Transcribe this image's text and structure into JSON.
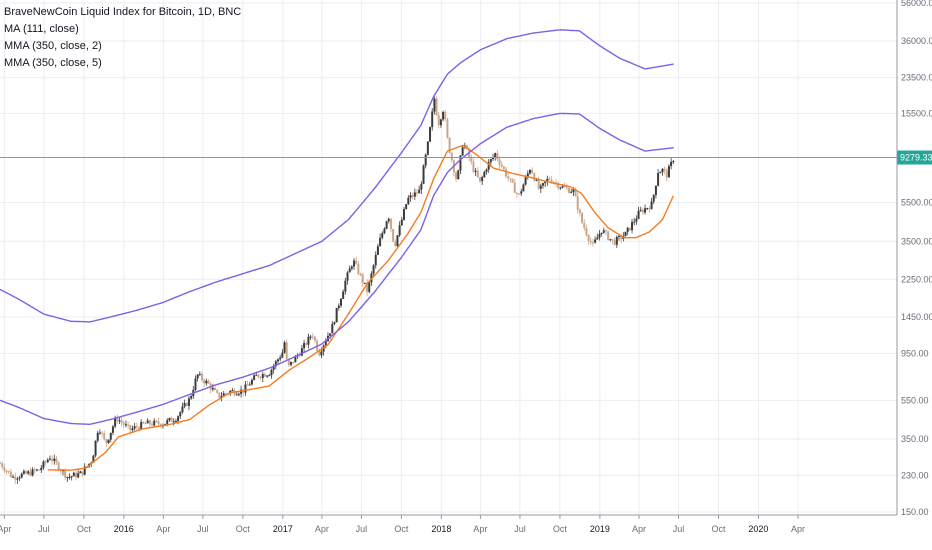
{
  "legend": {
    "title": "BraveNewCoin Liquid Index for Bitcoin, 1D, BNC",
    "indicators": [
      "MA (111, close)",
      "MMA (350, close, 2)",
      "MMA (350, close, 5)"
    ]
  },
  "colors": {
    "ma111": "#f57c20",
    "mma": "#7b61e8",
    "last_price_line": "#6fa58b",
    "last_price_tag": "#26a69a",
    "candle_up": "#3b3b3b",
    "candle_down": "#c9a58a",
    "grid": "#eceef2",
    "axis_line": "#9598a1"
  },
  "last_price": {
    "value": 9279.33,
    "label": "9279.33"
  },
  "chart_data": {
    "type": "line",
    "title": "BraveNewCoin Liquid Index for Bitcoin, 1D, BNC",
    "y_scale": "log",
    "ylim": [
      150,
      56000
    ],
    "xlim": [
      "2015-03-22",
      "2020-11-15"
    ],
    "y_ticks": [
      {
        "value": 56000,
        "label": "56000.00"
      },
      {
        "value": 36000,
        "label": "36000.00"
      },
      {
        "value": 23500,
        "label": "23500.00"
      },
      {
        "value": 15500,
        "label": "15500.00"
      },
      {
        "value": 9279.33,
        "label": "9279.33"
      },
      {
        "value": 5500,
        "label": "5500.00"
      },
      {
        "value": 3500,
        "label": "3500.00"
      },
      {
        "value": 2250,
        "label": "2250.00"
      },
      {
        "value": 1450,
        "label": "1450.00"
      },
      {
        "value": 950,
        "label": "950.00"
      },
      {
        "value": 550,
        "label": "550.00"
      },
      {
        "value": 350,
        "label": "350.00"
      },
      {
        "value": 230,
        "label": "230.00"
      },
      {
        "value": 150,
        "label": "150.00"
      }
    ],
    "x_ticks": [
      {
        "date": "2015-04-01",
        "label": "Apr",
        "year": false
      },
      {
        "date": "2015-07-01",
        "label": "Jul",
        "year": false
      },
      {
        "date": "2015-10-01",
        "label": "Oct",
        "year": false
      },
      {
        "date": "2016-01-01",
        "label": "2016",
        "year": true
      },
      {
        "date": "2016-04-01",
        "label": "Apr",
        "year": false
      },
      {
        "date": "2016-07-01",
        "label": "Jul",
        "year": false
      },
      {
        "date": "2016-10-01",
        "label": "Oct",
        "year": false
      },
      {
        "date": "2017-01-01",
        "label": "2017",
        "year": true
      },
      {
        "date": "2017-04-01",
        "label": "Apr",
        "year": false
      },
      {
        "date": "2017-07-01",
        "label": "Jul",
        "year": false
      },
      {
        "date": "2017-10-01",
        "label": "Oct",
        "year": false
      },
      {
        "date": "2018-01-01",
        "label": "2018",
        "year": true
      },
      {
        "date": "2018-04-01",
        "label": "Apr",
        "year": false
      },
      {
        "date": "2018-07-01",
        "label": "Jul",
        "year": false
      },
      {
        "date": "2018-10-01",
        "label": "Oct",
        "year": false
      },
      {
        "date": "2019-01-01",
        "label": "2019",
        "year": true
      },
      {
        "date": "2019-04-01",
        "label": "Apr",
        "year": false
      },
      {
        "date": "2019-07-01",
        "label": "Jul",
        "year": false
      },
      {
        "date": "2019-10-01",
        "label": "Oct",
        "year": false
      },
      {
        "date": "2020-01-01",
        "label": "2020",
        "year": true
      },
      {
        "date": "2020-04-01",
        "label": "Apr",
        "year": false
      }
    ],
    "series": [
      {
        "name": "BraveNewCoin Liquid Index for Bitcoin, 1D, BNC",
        "kind": "candles",
        "points": [
          [
            "2015-03-22",
            265
          ],
          [
            "2015-04-20",
            225
          ],
          [
            "2015-05-25",
            235
          ],
          [
            "2015-06-20",
            245
          ],
          [
            "2015-07-15",
            285
          ],
          [
            "2015-08-25",
            225
          ],
          [
            "2015-09-25",
            235
          ],
          [
            "2015-10-20",
            275
          ],
          [
            "2015-11-04",
            410
          ],
          [
            "2015-11-20",
            330
          ],
          [
            "2015-12-15",
            450
          ],
          [
            "2016-01-15",
            390
          ],
          [
            "2016-02-20",
            420
          ],
          [
            "2016-04-01",
            420
          ],
          [
            "2016-05-01",
            450
          ],
          [
            "2016-06-01",
            560
          ],
          [
            "2016-06-18",
            740
          ],
          [
            "2016-07-15",
            660
          ],
          [
            "2016-08-05",
            575
          ],
          [
            "2016-09-01",
            610
          ],
          [
            "2016-10-01",
            615
          ],
          [
            "2016-11-01",
            730
          ],
          [
            "2016-12-01",
            760
          ],
          [
            "2016-12-31",
            960
          ],
          [
            "2017-01-05",
            1080
          ],
          [
            "2017-01-12",
            800
          ],
          [
            "2017-02-15",
            1000
          ],
          [
            "2017-03-10",
            1200
          ],
          [
            "2017-03-25",
            950
          ],
          [
            "2017-04-25",
            1300
          ],
          [
            "2017-05-25",
            2200
          ],
          [
            "2017-06-12",
            2800
          ],
          [
            "2017-07-15",
            1950
          ],
          [
            "2017-08-10",
            3400
          ],
          [
            "2017-09-01",
            4800
          ],
          [
            "2017-09-15",
            3300
          ],
          [
            "2017-10-15",
            5700
          ],
          [
            "2017-11-12",
            6300
          ],
          [
            "2017-12-01",
            10800
          ],
          [
            "2017-12-17",
            19100
          ],
          [
            "2017-12-24",
            13500
          ],
          [
            "2018-01-06",
            16500
          ],
          [
            "2018-01-16",
            11000
          ],
          [
            "2018-02-06",
            7000
          ],
          [
            "2018-02-20",
            11200
          ],
          [
            "2018-03-15",
            8200
          ],
          [
            "2018-03-31",
            6900
          ],
          [
            "2018-04-15",
            8300
          ],
          [
            "2018-05-05",
            9700
          ],
          [
            "2018-06-01",
            7500
          ],
          [
            "2018-06-28",
            5900
          ],
          [
            "2018-07-25",
            8300
          ],
          [
            "2018-08-15",
            6300
          ],
          [
            "2018-09-05",
            7300
          ],
          [
            "2018-10-10",
            6500
          ],
          [
            "2018-11-01",
            6300
          ],
          [
            "2018-11-20",
            4400
          ],
          [
            "2018-12-15",
            3300
          ],
          [
            "2019-01-05",
            4000
          ],
          [
            "2019-02-01",
            3450
          ],
          [
            "2019-03-01",
            3800
          ],
          [
            "2019-04-02",
            4900
          ],
          [
            "2019-05-01",
            5400
          ],
          [
            "2019-05-15",
            7900
          ],
          [
            "2019-05-25",
            8000
          ],
          [
            "2019-06-04",
            7600
          ],
          [
            "2019-06-15",
            8700
          ],
          [
            "2019-06-20",
            9279.33
          ]
        ]
      },
      {
        "name": "MA (111, close)",
        "points": [
          [
            "2015-07-10",
            245
          ],
          [
            "2015-09-01",
            244
          ],
          [
            "2015-10-05",
            250
          ],
          [
            "2015-11-20",
            300
          ],
          [
            "2015-12-20",
            360
          ],
          [
            "2016-02-15",
            395
          ],
          [
            "2016-04-15",
            415
          ],
          [
            "2016-06-01",
            440
          ],
          [
            "2016-07-15",
            520
          ],
          [
            "2016-09-01",
            600
          ],
          [
            "2016-10-20",
            625
          ],
          [
            "2016-12-01",
            650
          ],
          [
            "2017-01-15",
            780
          ],
          [
            "2017-03-01",
            900
          ],
          [
            "2017-04-15",
            1050
          ],
          [
            "2017-06-01",
            1500
          ],
          [
            "2017-07-15",
            2150
          ],
          [
            "2017-09-01",
            2800
          ],
          [
            "2017-10-15",
            3800
          ],
          [
            "2017-11-15",
            4900
          ],
          [
            "2017-12-15",
            7300
          ],
          [
            "2018-01-15",
            10000
          ],
          [
            "2018-02-20",
            10700
          ],
          [
            "2018-03-20",
            9700
          ],
          [
            "2018-05-01",
            8200
          ],
          [
            "2018-06-15",
            7700
          ],
          [
            "2018-08-01",
            7300
          ],
          [
            "2018-09-15",
            6900
          ],
          [
            "2018-10-25",
            6600
          ],
          [
            "2018-11-20",
            6100
          ],
          [
            "2018-12-20",
            4900
          ],
          [
            "2019-01-20",
            4100
          ],
          [
            "2019-02-25",
            3650
          ],
          [
            "2019-03-25",
            3650
          ],
          [
            "2019-04-25",
            3900
          ],
          [
            "2019-05-25",
            4500
          ],
          [
            "2019-06-20",
            6000
          ]
        ]
      },
      {
        "name": "MMA (350, close, 2)",
        "points": [
          [
            "2015-03-22",
            550
          ],
          [
            "2015-05-01",
            510
          ],
          [
            "2015-07-01",
            445
          ],
          [
            "2015-09-01",
            420
          ],
          [
            "2015-10-15",
            416
          ],
          [
            "2015-12-01",
            440
          ],
          [
            "2016-02-01",
            480
          ],
          [
            "2016-04-01",
            525
          ],
          [
            "2016-06-01",
            590
          ],
          [
            "2016-08-01",
            660
          ],
          [
            "2016-10-01",
            720
          ],
          [
            "2016-12-01",
            800
          ],
          [
            "2017-02-01",
            920
          ],
          [
            "2017-04-01",
            1060
          ],
          [
            "2017-06-01",
            1370
          ],
          [
            "2017-08-01",
            1950
          ],
          [
            "2017-10-01",
            2900
          ],
          [
            "2017-11-15",
            4000
          ],
          [
            "2017-12-15",
            6000
          ],
          [
            "2018-01-15",
            7800
          ],
          [
            "2018-02-15",
            9100
          ],
          [
            "2018-04-01",
            10900
          ],
          [
            "2018-06-01",
            13200
          ],
          [
            "2018-08-01",
            14600
          ],
          [
            "2018-10-01",
            15500
          ],
          [
            "2018-11-15",
            15400
          ],
          [
            "2019-01-01",
            13000
          ],
          [
            "2019-02-15",
            11400
          ],
          [
            "2019-04-15",
            10000
          ],
          [
            "2019-06-20",
            10400
          ]
        ]
      },
      {
        "name": "MMA (350, close, 5)",
        "points": [
          [
            "2015-03-22",
            2000
          ],
          [
            "2015-05-01",
            1800
          ],
          [
            "2015-07-01",
            1500
          ],
          [
            "2015-09-01",
            1380
          ],
          [
            "2015-10-15",
            1370
          ],
          [
            "2015-12-01",
            1450
          ],
          [
            "2016-02-01",
            1570
          ],
          [
            "2016-04-01",
            1720
          ],
          [
            "2016-06-01",
            1950
          ],
          [
            "2016-08-01",
            2180
          ],
          [
            "2016-10-01",
            2400
          ],
          [
            "2016-12-01",
            2640
          ],
          [
            "2017-02-01",
            3050
          ],
          [
            "2017-04-01",
            3500
          ],
          [
            "2017-06-01",
            4500
          ],
          [
            "2017-08-01",
            6500
          ],
          [
            "2017-10-01",
            9800
          ],
          [
            "2017-11-15",
            13500
          ],
          [
            "2017-12-15",
            19000
          ],
          [
            "2018-01-15",
            24500
          ],
          [
            "2018-02-15",
            28000
          ],
          [
            "2018-04-01",
            32500
          ],
          [
            "2018-06-01",
            37000
          ],
          [
            "2018-08-01",
            39500
          ],
          [
            "2018-10-01",
            41000
          ],
          [
            "2018-11-15",
            40500
          ],
          [
            "2019-01-01",
            34000
          ],
          [
            "2019-02-15",
            29500
          ],
          [
            "2019-04-15",
            26000
          ],
          [
            "2019-06-20",
            27500
          ]
        ]
      }
    ]
  }
}
